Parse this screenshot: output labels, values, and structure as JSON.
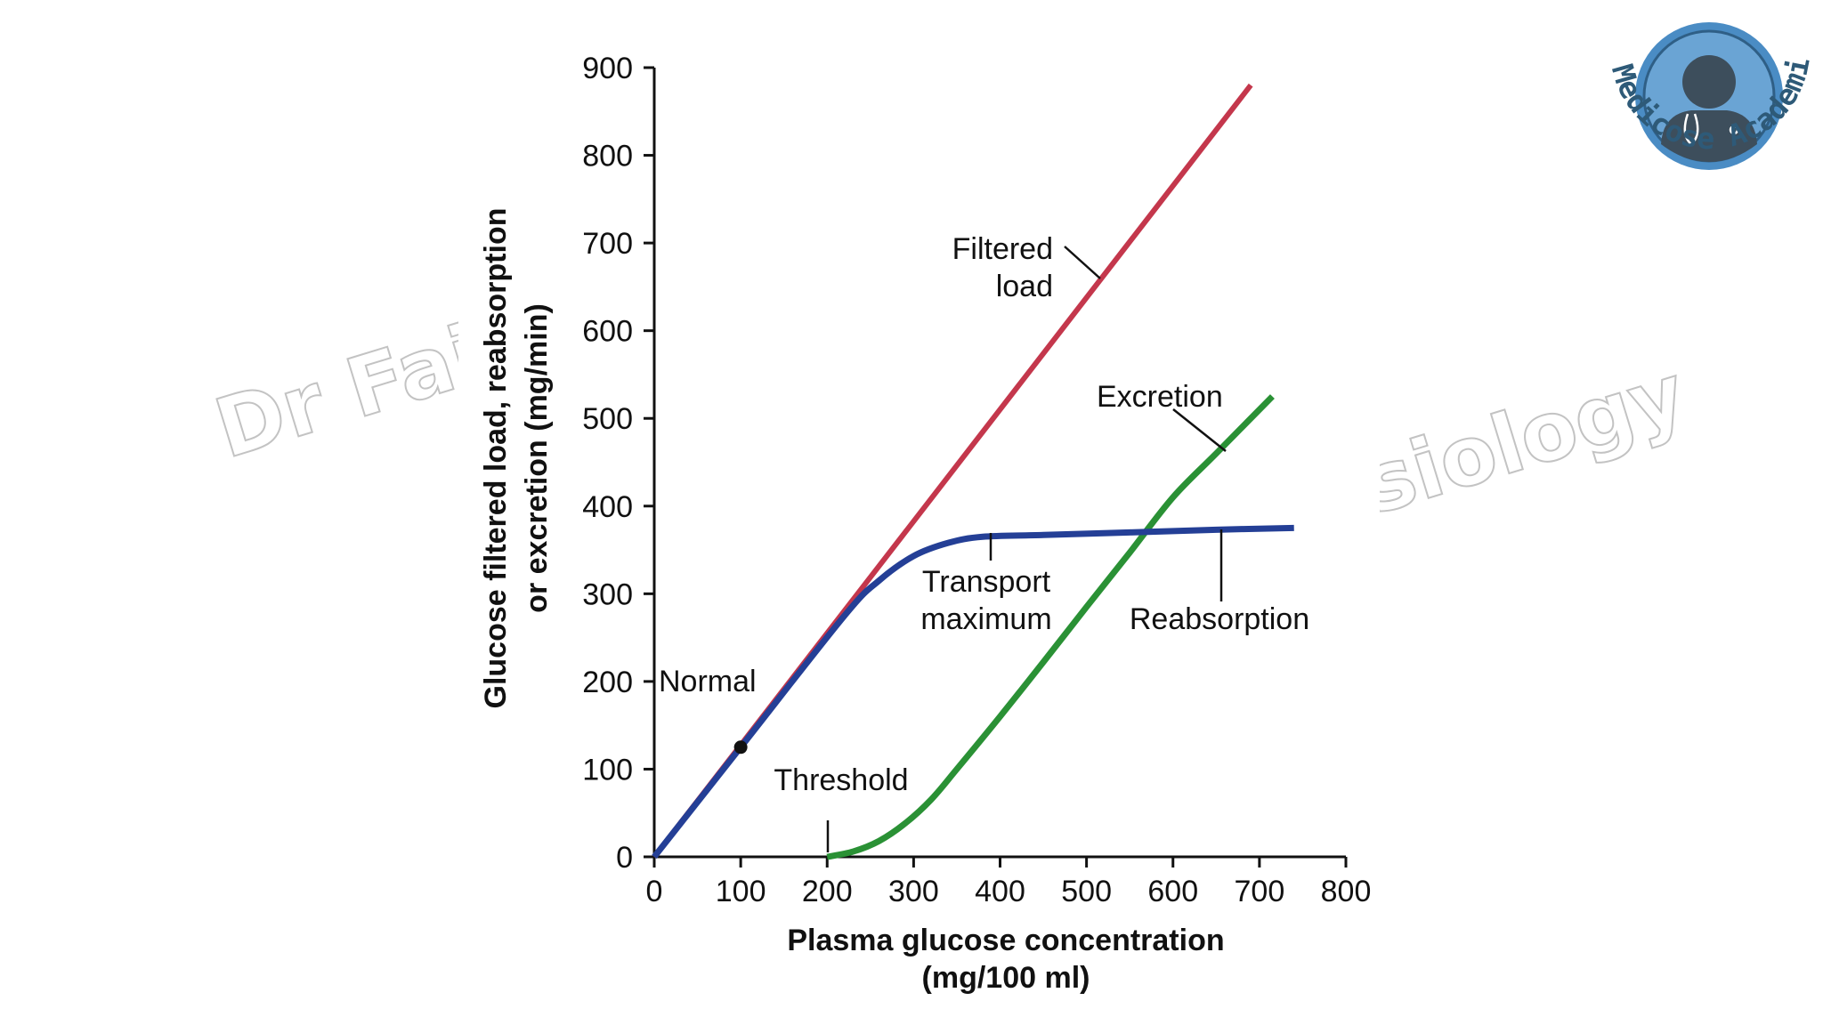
{
  "watermark": {
    "left": "Dr Faiz",
    "right": "siology"
  },
  "logo": {
    "text": "Medicose Academics",
    "ring_color": "#4a8cc4",
    "figure_color": "#3d4e5c"
  },
  "chart_data": {
    "type": "line",
    "title": "",
    "xlabel": "Plasma glucose concentration",
    "xlabel_units": "(mg/100 ml)",
    "ylabel": "Glucose filtered load, reabsorption",
    "ylabel_line2": "or excretion (mg/min)",
    "xlim": [
      0,
      800
    ],
    "ylim": [
      0,
      900
    ],
    "x_ticks": [
      0,
      100,
      200,
      300,
      400,
      500,
      600,
      700,
      800
    ],
    "y_ticks": [
      0,
      100,
      200,
      300,
      400,
      500,
      600,
      700,
      800,
      900
    ],
    "grid": false,
    "series": [
      {
        "name": "Filtered load",
        "color": "#c4374c",
        "x": [
          0,
          690
        ],
        "y": [
          0,
          880
        ]
      },
      {
        "name": "Reabsorption",
        "color": "#243f96",
        "x": [
          0,
          100,
          220,
          260,
          300,
          340,
          380,
          450,
          550,
          650,
          740
        ],
        "y": [
          0,
          125,
          275,
          315,
          343,
          358,
          365,
          367,
          370,
          373,
          375
        ]
      },
      {
        "name": "Excretion",
        "color": "#2a9135",
        "x": [
          200,
          230,
          260,
          290,
          320,
          350,
          400,
          450,
          500,
          550,
          600,
          650,
          715
        ],
        "y": [
          0,
          6,
          18,
          38,
          65,
          100,
          160,
          222,
          285,
          347,
          410,
          460,
          525
        ]
      }
    ],
    "points": [
      {
        "name": "Normal",
        "x": 100,
        "y": 125
      }
    ],
    "annotations": {
      "filtered_load_1": "Filtered",
      "filtered_load_2": "load",
      "excretion": "Excretion",
      "transport_1": "Transport",
      "transport_2": "maximum",
      "reabsorption": "Reabsorption",
      "normal": "Normal",
      "threshold": "Threshold"
    }
  }
}
